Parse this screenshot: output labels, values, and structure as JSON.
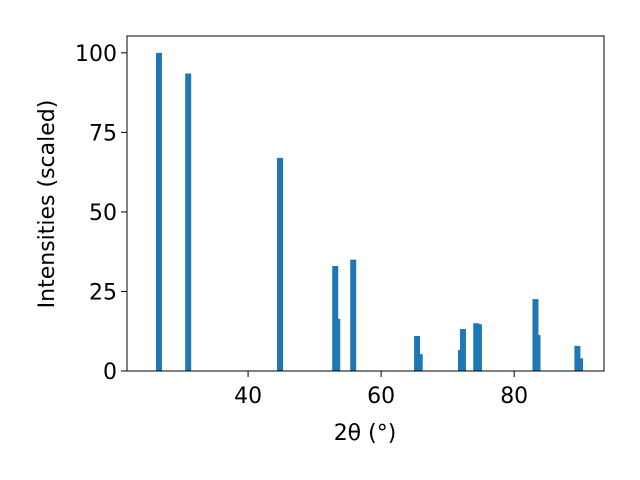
{
  "chart_data": {
    "type": "bar",
    "xlabel": "2θ (°)",
    "ylabel": "Intensities (scaled)",
    "x": [
      26.6,
      31.0,
      44.8,
      53.1,
      53.4,
      55.8,
      65.4,
      65.8,
      72.0,
      72.3,
      74.3,
      74.7,
      83.2,
      83.5,
      89.5,
      89.9
    ],
    "values": [
      100,
      93.5,
      67,
      33,
      16.4,
      35,
      11,
      5.3,
      6.6,
      13.2,
      15,
      14.7,
      22.6,
      11.3,
      7.9,
      4
    ],
    "color": "#1f77b4",
    "xlim": [
      21.8,
      93.5
    ],
    "xticks": [
      40,
      60,
      80
    ],
    "ylim": [
      0,
      105.3
    ],
    "yticks": [
      0,
      25,
      50,
      75,
      100
    ],
    "grid": false
  }
}
